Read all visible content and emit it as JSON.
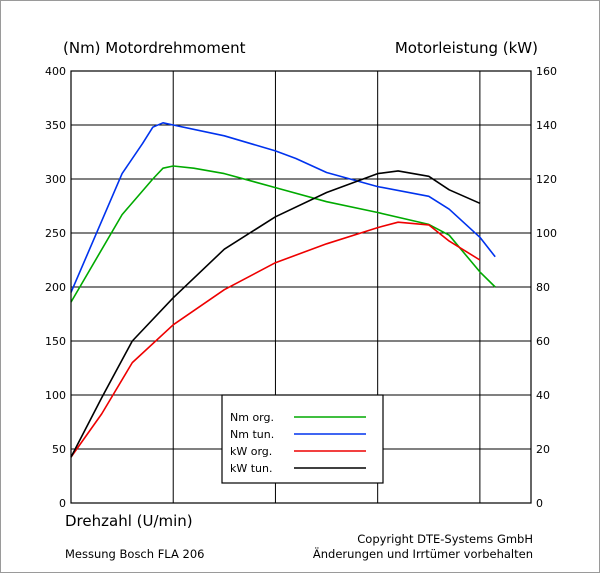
{
  "chart_data": {
    "type": "line",
    "left_axis_title": "(Nm)  Motordrehmoment",
    "right_axis_title": "Motorleistung  (kW)",
    "xlabel": "Drehzahl  (U/min)",
    "footer_left": "Messung Bosch FLA 206",
    "footer_right_1": "Copyright  DTE-Systems GmbH",
    "footer_right_2": "Änderungen und Irrtümer vorbehalten",
    "y_left": {
      "min": 0,
      "max": 400,
      "ticks": [
        0,
        50,
        100,
        150,
        200,
        250,
        300,
        350,
        400
      ]
    },
    "y_right": {
      "min": 0,
      "max": 160,
      "ticks": [
        0,
        20,
        40,
        60,
        80,
        100,
        120,
        140,
        160
      ]
    },
    "x_range": [
      0,
      4.5
    ],
    "x_gridlines": [
      1,
      2,
      3,
      4
    ],
    "x_ticks_labeled": false,
    "grid": true,
    "legend_position": "bottom-center",
    "series": [
      {
        "name": "Nm org.",
        "axis": "left",
        "color": "#00aa00",
        "points": [
          [
            0,
            186
          ],
          [
            0.5,
            267
          ],
          [
            0.8,
            300
          ],
          [
            0.9,
            310
          ],
          [
            1.0,
            312
          ],
          [
            1.2,
            310
          ],
          [
            1.5,
            305
          ],
          [
            2.0,
            292
          ],
          [
            2.5,
            279
          ],
          [
            3.0,
            269
          ],
          [
            3.5,
            258
          ],
          [
            3.7,
            248
          ],
          [
            4.0,
            214
          ],
          [
            4.15,
            200
          ]
        ]
      },
      {
        "name": "Nm tun.",
        "axis": "left",
        "color": "#0033ee",
        "points": [
          [
            0,
            195
          ],
          [
            0.5,
            305
          ],
          [
            0.7,
            333
          ],
          [
            0.8,
            348
          ],
          [
            0.9,
            352
          ],
          [
            1.0,
            350
          ],
          [
            1.5,
            340
          ],
          [
            2.0,
            326
          ],
          [
            2.2,
            319
          ],
          [
            2.5,
            306
          ],
          [
            3.0,
            293
          ],
          [
            3.5,
            284
          ],
          [
            3.7,
            272
          ],
          [
            4.0,
            246
          ],
          [
            4.15,
            228
          ]
        ]
      },
      {
        "name": "kW org.",
        "axis": "right",
        "color": "#ee0000",
        "points": [
          [
            0,
            17
          ],
          [
            0.3,
            33
          ],
          [
            0.6,
            52
          ],
          [
            1.0,
            66
          ],
          [
            1.5,
            79
          ],
          [
            2.0,
            89
          ],
          [
            2.5,
            96
          ],
          [
            3.0,
            102
          ],
          [
            3.2,
            104
          ],
          [
            3.5,
            103
          ],
          [
            3.7,
            97
          ],
          [
            4.0,
            90
          ]
        ]
      },
      {
        "name": "kW tun.",
        "axis": "right",
        "color": "#000000",
        "points": [
          [
            0,
            17
          ],
          [
            0.3,
            39
          ],
          [
            0.6,
            60
          ],
          [
            1.0,
            76
          ],
          [
            1.5,
            94
          ],
          [
            2.0,
            106
          ],
          [
            2.5,
            115
          ],
          [
            3.0,
            122
          ],
          [
            3.2,
            123
          ],
          [
            3.5,
            121
          ],
          [
            3.7,
            116
          ],
          [
            4.0,
            111
          ]
        ]
      }
    ]
  }
}
